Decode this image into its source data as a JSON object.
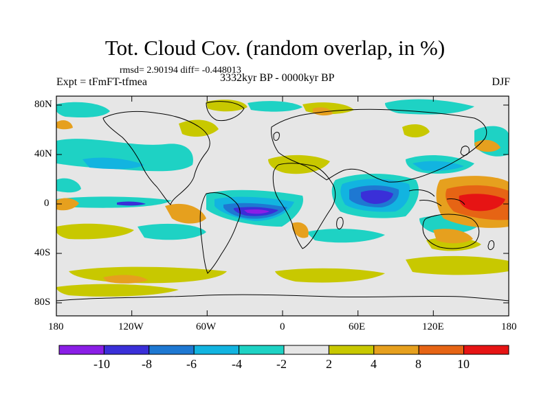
{
  "header": {
    "title": "Tot. Cloud Cov. (random overlap, in %)",
    "stats": "rmsd= 2.90194 diff= -0.448013",
    "experiment": "Expt = tFmFT-tfmea",
    "period": "3332kyr BP - 0000kyr BP",
    "season": "DJF"
  },
  "map": {
    "projection": "cylindrical-equidistant",
    "lon_ticks": [
      "180",
      "120W",
      "60W",
      "0",
      "60E",
      "120E",
      "180"
    ],
    "lat_ticks": [
      "80N",
      "40N",
      "0",
      "40S",
      "80S"
    ],
    "land_color": "#e6e6e6",
    "coastline_color": "#000000"
  },
  "colorbar": {
    "labels": [
      "-10",
      "-8",
      "-6",
      "-4",
      "-2",
      "2",
      "4",
      "8",
      "10"
    ],
    "colors": [
      "#8a1ee6",
      "#3a2fd8",
      "#1e78d2",
      "#12b4e0",
      "#1ed2c4",
      "#e6e6e6",
      "#c8c800",
      "#e6a01e",
      "#e66414",
      "#e61414"
    ]
  }
}
